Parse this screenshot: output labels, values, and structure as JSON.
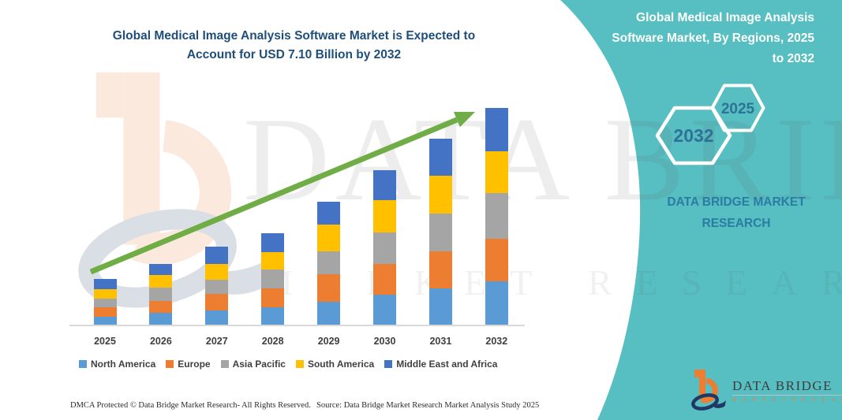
{
  "main_title": {
    "lines": [
      "Global Medical Image Analysis Software Market is Expected to",
      "Account for USD 7.10 Billion by 2032"
    ]
  },
  "side_panel": {
    "bg_color": "#57BEC1",
    "heading_lines": [
      "Global Medical Image Analysis",
      "Software Market, By Regions, 2025",
      "to 2032"
    ],
    "hexagon_back_year": "2032",
    "hexagon_front_year": "2025",
    "hexagon_year_color": "#2E7296",
    "brand_lines": [
      "DATA BRIDGE MARKET",
      "RESEARCH"
    ],
    "brand_color": "#2A7CA3"
  },
  "logo": {
    "title": "DATA BRIDGE",
    "subtitle": "M A R K E T   R E S E A R C H",
    "orange": "#ED7D31",
    "navy": "#203864"
  },
  "watermark": {
    "line1": "DATA BRIDGE",
    "line2": "MARKET RESEARCH"
  },
  "footer": {
    "dmca": "DMCA Protected © Data Bridge Market Research-  All Rights Reserved.",
    "source": "Source: Data Bridge Market Research  Market Analysis Study 2025"
  },
  "chart_data": {
    "type": "bar",
    "stacked": true,
    "title": "Global Medical Image Analysis Software Market is Expected to Account for USD 7.10 Billion by 2032",
    "unit": "USD billion",
    "categories": [
      "2025",
      "2026",
      "2027",
      "2028",
      "2029",
      "2030",
      "2031",
      "2032"
    ],
    "series": [
      {
        "name": "North America",
        "color": "#5B9BD5",
        "values": [
          0.28,
          0.41,
          0.5,
          0.6,
          0.77,
          1.01,
          1.2,
          1.43
        ]
      },
      {
        "name": "Europe",
        "color": "#ED7D31",
        "values": [
          0.32,
          0.39,
          0.53,
          0.6,
          0.89,
          0.99,
          1.23,
          1.41
        ]
      },
      {
        "name": "Asia Pacific",
        "color": "#A5A5A5",
        "values": [
          0.28,
          0.43,
          0.47,
          0.63,
          0.77,
          1.03,
          1.23,
          1.49
        ]
      },
      {
        "name": "South America",
        "color": "#FFC000",
        "values": [
          0.3,
          0.41,
          0.5,
          0.57,
          0.85,
          1.05,
          1.22,
          1.35
        ]
      },
      {
        "name": "Middle East and Africa",
        "color": "#4472C4",
        "values": [
          0.35,
          0.36,
          0.56,
          0.61,
          0.77,
          0.98,
          1.23,
          1.42
        ]
      }
    ],
    "totals": [
      1.53,
      2.0,
      2.56,
      3.01,
      4.05,
      5.06,
      6.11,
      7.1
    ],
    "ylim": [
      0,
      7.3
    ],
    "y_axis_shown": false,
    "grid": false,
    "legend_position": "bottom",
    "trend_arrow_color": "#70AD47",
    "axis_line_color": "#D9D9D9",
    "title_color": "#1F4E79"
  }
}
